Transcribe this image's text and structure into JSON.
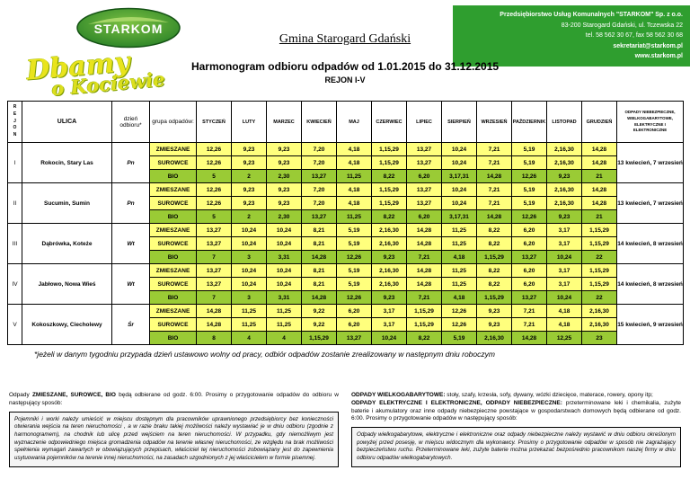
{
  "header": {
    "logo_text": "STARKOM",
    "municipality": "Gmina Starogard Gdański",
    "company": {
      "lines": [
        "Przedsiębiorstwo Usług Komunalnych \"STARKOM\" Sp. z o.o.",
        "83-200 Starogard Gdański, ul. Tczewska 22",
        "tel. 58 562 30 67, fax 58 562 30 68",
        "sekretariat@starkom.pl",
        "www.starkom.pl"
      ]
    },
    "slogan": {
      "line1": "Dbamy",
      "line2": "o Kociewie"
    }
  },
  "title": "Harmonogram odbioru odpadów od 1.01.2015 do 31.12.2015",
  "subtitle": "REJON I-V",
  "colors": {
    "brand_green": "#2f9e2f",
    "row_yellow": "#ffff7d",
    "row_green": "#9acb35"
  },
  "table": {
    "headers": {
      "rejon": "REJON",
      "ulica": "ULICA",
      "dzien": "dzień odbioru*",
      "grupa": "grupa odpadów:",
      "months": [
        "STYCZEŃ",
        "LUTY",
        "MARZEC",
        "KWIECIEŃ",
        "MAJ",
        "CZERWIEC",
        "LIPIEC",
        "SIERPIEŃ",
        "WRZESIEŃ",
        "PAŹDZIERNIK",
        "LISTOPAD",
        "GRUDZIEŃ"
      ],
      "special": "ODPADY NIEBEZPIECZNE, WIELKOGABARYTOWE, ELEKTRYCZNE I ELEKTRONICZNE"
    },
    "regions": [
      {
        "id": "I",
        "ulica": "Rokocin, Stary Las",
        "dzien": "Pn",
        "special": "13 kwiecień, 7 wrzesień",
        "rows": [
          {
            "grupa": "ZMIESZANE",
            "color": "yellow",
            "values": [
              "12,26",
              "9,23",
              "9,23",
              "7,20",
              "4,18",
              "1,15,29",
              "13,27",
              "10,24",
              "7,21",
              "5,19",
              "2,16,30",
              "14,28"
            ]
          },
          {
            "grupa": "SUROWCE",
            "color": "yellow",
            "values": [
              "12,26",
              "9,23",
              "9,23",
              "7,20",
              "4,18",
              "1,15,29",
              "13,27",
              "10,24",
              "7,21",
              "5,19",
              "2,16,30",
              "14,28"
            ]
          },
          {
            "grupa": "BIO",
            "color": "green",
            "values": [
              "5",
              "2",
              "2,30",
              "13,27",
              "11,25",
              "8,22",
              "6,20",
              "3,17,31",
              "14,28",
              "12,26",
              "9,23",
              "21"
            ]
          }
        ]
      },
      {
        "id": "II",
        "ulica": "Sucumin, Sumin",
        "dzien": "Pn",
        "special": "13 kwiecień, 7 wrzesień",
        "rows": [
          {
            "grupa": "ZMIESZANE",
            "color": "yellow",
            "values": [
              "12,26",
              "9,23",
              "9,23",
              "7,20",
              "4,18",
              "1,15,29",
              "13,27",
              "10,24",
              "7,21",
              "5,19",
              "2,16,30",
              "14,28"
            ]
          },
          {
            "grupa": "SUROWCE",
            "color": "yellow",
            "values": [
              "12,26",
              "9,23",
              "9,23",
              "7,20",
              "4,18",
              "1,15,29",
              "13,27",
              "10,24",
              "7,21",
              "5,19",
              "2,16,30",
              "14,28"
            ]
          },
          {
            "grupa": "BIO",
            "color": "green",
            "values": [
              "5",
              "2",
              "2,30",
              "13,27",
              "11,25",
              "8,22",
              "6,20",
              "3,17,31",
              "14,28",
              "12,26",
              "9,23",
              "21"
            ]
          }
        ]
      },
      {
        "id": "III",
        "ulica": "Dąbrówka, Koteże",
        "dzien": "Wt",
        "special": "14 kwiecień, 8 wrzesień",
        "rows": [
          {
            "grupa": "ZMIESZANE",
            "color": "yellow",
            "values": [
              "13,27",
              "10,24",
              "10,24",
              "8,21",
              "5,19",
              "2,16,30",
              "14,28",
              "11,25",
              "8,22",
              "6,20",
              "3,17",
              "1,15,29"
            ]
          },
          {
            "grupa": "SUROWCE",
            "color": "yellow",
            "values": [
              "13,27",
              "10,24",
              "10,24",
              "8,21",
              "5,19",
              "2,16,30",
              "14,28",
              "11,25",
              "8,22",
              "6,20",
              "3,17",
              "1,15,29"
            ]
          },
          {
            "grupa": "BIO",
            "color": "green",
            "values": [
              "7",
              "3",
              "3,31",
              "14,28",
              "12,26",
              "9,23",
              "7,21",
              "4,18",
              "1,15,29",
              "13,27",
              "10,24",
              "22"
            ]
          }
        ]
      },
      {
        "id": "IV",
        "ulica": "Jabłowo, Nowa Wieś",
        "dzien": "Wt",
        "special": "14 kwiecień, 8 wrzesień",
        "rows": [
          {
            "grupa": "ZMIESZANE",
            "color": "yellow",
            "values": [
              "13,27",
              "10,24",
              "10,24",
              "8,21",
              "5,19",
              "2,16,30",
              "14,28",
              "11,25",
              "8,22",
              "6,20",
              "3,17",
              "1,15,29"
            ]
          },
          {
            "grupa": "SUROWCE",
            "color": "yellow",
            "values": [
              "13,27",
              "10,24",
              "10,24",
              "8,21",
              "5,19",
              "2,16,30",
              "14,28",
              "11,25",
              "8,22",
              "6,20",
              "3,17",
              "1,15,29"
            ]
          },
          {
            "grupa": "BIO",
            "color": "green",
            "values": [
              "7",
              "3",
              "3,31",
              "14,28",
              "12,26",
              "9,23",
              "7,21",
              "4,18",
              "1,15,29",
              "13,27",
              "10,24",
              "22"
            ]
          }
        ]
      },
      {
        "id": "V",
        "ulica": "Kokoszkowy, Ciecholewy",
        "dzien": "Śr",
        "special": "15 kwiecień, 9 wrzesień",
        "rows": [
          {
            "grupa": "ZMIESZANE",
            "color": "yellow",
            "values": [
              "14,28",
              "11,25",
              "11,25",
              "9,22",
              "6,20",
              "3,17",
              "1,15,29",
              "12,26",
              "9,23",
              "7,21",
              "4,18",
              "2,16,30"
            ]
          },
          {
            "grupa": "SUROWCE",
            "color": "yellow",
            "values": [
              "14,28",
              "11,25",
              "11,25",
              "9,22",
              "6,20",
              "3,17",
              "1,15,29",
              "12,26",
              "9,23",
              "7,21",
              "4,18",
              "2,16,30"
            ]
          },
          {
            "grupa": "BIO",
            "color": "green",
            "values": [
              "8",
              "4",
              "4",
              "1,15,29",
              "13,27",
              "10,24",
              "8,22",
              "5,19",
              "2,16,30",
              "14,28",
              "12,25",
              "23"
            ]
          }
        ]
      }
    ]
  },
  "footnote": "*jeżeli w danym tygodniu przypada dzień ustawowo wolny od pracy, odbiór odpadów zostanie zrealizowany w następnym dniu roboczym",
  "footer": {
    "left": {
      "intro_prefix": "Odpady ",
      "intro_bold": "ZMIESZANE, SUROWCE, BIO",
      "intro_suffix": " będą odbierane od godz. 6:00.  Prosimy o przygotowanie odpadów do odbioru w następujący sposób:",
      "box": "Pojemniki i worki należy umieścić w miejscu dostępnym dla pracowników uprawnionego przedsiębiorcy bez konieczności otwierania wejścia na teren nieruchomości , a w razie braku takiej możliwości należy wystawiać je w dniu odbioru (zgodnie z harmonogramem), na chodnik lub ulicę przed wejściem na teren nieruchomości. W przypadku, gdy niemożliwym jest wyznaczenie odpowiedniego miejsca gromadzenia odpadów na terenie własnej nieruchomości, ze względu na brak możliwości spełnienia wymagań zawartych w obowiązujących przepisach, właściciel tej nieruchomości zobowiązany jest do zapewnienia usytuowania pojemników na terenie innej nieruchomości, na zasadach uzgodnionych z jej właścicielem w formie pisemnej."
    },
    "right": {
      "p1_bold": "ODPADY WIELKOGABARYTOWE:",
      "p1_text": " stoły, szafy, krzesła, sofy, dywany, wózki dziecięce, materace, rowery, opony itp;",
      "p2_bold": "ODPADY ELEKTRYCZNE I ELEKTRONICZNE, ODPADY NIEBEZPIECZNE:",
      "p2_text": " przeterminowane leki i  chemikalia, zużyte baterie i akumulatory oraz inne odpady niebezpieczne powstające w gospodarstwach domowych będą odbierane od godz. 6:00. Prosimy o przygotowanie odpadów w następujący sposób:",
      "box": "Odpady wielkogabarytowe, elektryczne i elektroniczne oraz odpady niebezpieczne należy wystawić  w dniu odbioru określonym powyżej przed posesję, w miejscu widocznym dla wykonawcy. Prosimy o przygotowanie odpadów w sposób nie zagrażający bezpieczeństwu ruchu. Przeterminowane leki, zużyte baterie można przekazać bezpośrednio pracownikom naszej firmy w dniu odbioru odpadów wielkogabarytowych."
    }
  }
}
